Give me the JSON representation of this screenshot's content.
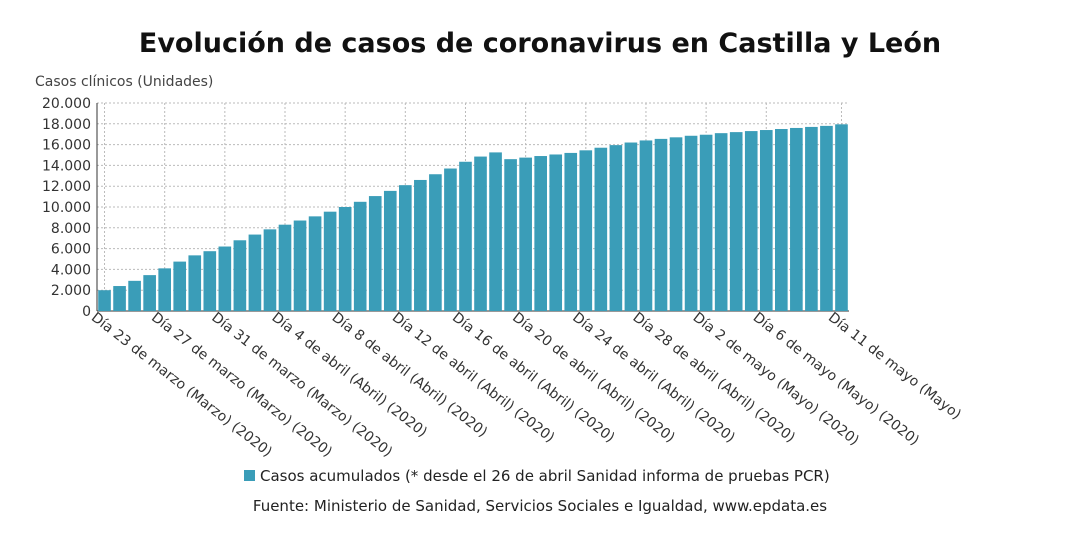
{
  "chart_data": {
    "type": "bar",
    "title": "Evolución de casos de coronavirus en Castilla y León",
    "y_label": "Casos clínicos (Unidades)",
    "source": "Fuente: Ministerio de Sanidad, Servicios Sociales e Igualdad, www.epdata.es",
    "categories": [
      "Día 23 de marzo (Marzo) (2020)",
      null,
      null,
      null,
      "Día 27 de marzo (Marzo) (2020)",
      null,
      null,
      null,
      "Día 31 de marzo (Marzo) (2020)",
      null,
      null,
      null,
      "Día 4 de abril (Abril) (2020)",
      null,
      null,
      null,
      "Día 8 de abril (Abril) (2020)",
      null,
      null,
      null,
      "Día 12 de abril (Abril) (2020)",
      null,
      null,
      null,
      "Día 16 de abril (Abril) (2020)",
      null,
      null,
      null,
      "Día 20 de abril (Abril) (2020)",
      null,
      null,
      null,
      "Día 24 de abril (Abril) (2020)",
      null,
      null,
      null,
      "Día 28 de abril (Abril) (2020)",
      null,
      null,
      null,
      "Día 2 de mayo (Mayo) (2020)",
      null,
      null,
      null,
      "Día 6 de mayo (Mayo) (2020)",
      null,
      null,
      null,
      null,
      "Día 11 de mayo (Mayo)"
    ],
    "series": [
      {
        "name": "Casos acumulados (* desde el 26 de abril Sanidad informa de pruebas PCR)",
        "color": "#3a9db8",
        "values": [
          2000,
          2400,
          2900,
          3450,
          4100,
          4750,
          5350,
          5750,
          6200,
          6800,
          7350,
          7850,
          8300,
          8700,
          9100,
          9550,
          10000,
          10500,
          11050,
          11550,
          12100,
          12600,
          13150,
          13700,
          14350,
          14850,
          15250,
          14600,
          14750,
          14900,
          15050,
          15200,
          15450,
          15700,
          15950,
          16200,
          16400,
          16550,
          16700,
          16850,
          16950,
          17100,
          17200,
          17300,
          17400,
          17500,
          17600,
          17700,
          17800,
          17950
        ]
      }
    ],
    "ylim": [
      0,
      20000
    ],
    "yticks": [
      0,
      {
        "value": 2000,
        "label": "2.000"
      },
      {
        "value": 4000,
        "label": "4.000"
      },
      {
        "value": 6000,
        "label": "6.000"
      },
      {
        "value": 8000,
        "label": "8.000"
      },
      {
        "value": 10000,
        "label": "10.000"
      },
      {
        "value": 12000,
        "label": "12.000"
      },
      {
        "value": 14000,
        "label": "14.000"
      },
      {
        "value": 16000,
        "label": "16.000"
      },
      {
        "value": 18000,
        "label": "18.000"
      },
      {
        "value": 20000,
        "label": "20.000"
      }
    ],
    "grid": true
  }
}
